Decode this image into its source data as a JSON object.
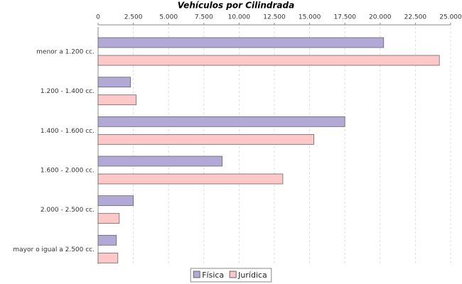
{
  "chart_data": {
    "type": "hbar",
    "title": "Vehículos por Cilindrada",
    "categories": [
      "menor a 1.200 cc.",
      "1.200 - 1.400 cc.",
      "1.400 - 1.600 cc.",
      "1.600 - 2.000 cc.",
      "2.000 - 2.500 cc.",
      "mayor o igual a 2.500 cc."
    ],
    "series": [
      {
        "name": "Física",
        "color": "#b3a9d6",
        "values": [
          20250,
          2300,
          17500,
          8800,
          2500,
          1300
        ]
      },
      {
        "name": "Jurídica",
        "color": "#ffc8c8",
        "values": [
          24200,
          2700,
          15300,
          13100,
          1500,
          1400
        ]
      }
    ],
    "xlim": [
      0,
      25000
    ],
    "xticks": [
      0,
      {
        "value": 2500,
        "label": "2.500"
      },
      {
        "value": 5000,
        "label": "5.000"
      },
      {
        "value": 7500,
        "label": "7.500"
      },
      {
        "value": 10000,
        "label": "10.000"
      },
      {
        "value": 12500,
        "label": "12.500"
      },
      {
        "value": 15000,
        "label": "15.000"
      },
      {
        "value": 17500,
        "label": "17.500"
      },
      {
        "value": 20000,
        "label": "20.000"
      },
      {
        "value": 22500,
        "label": "22.500"
      },
      {
        "value": 25000,
        "label": "25.000"
      }
    ],
    "grid": true,
    "legend": "bottom"
  }
}
